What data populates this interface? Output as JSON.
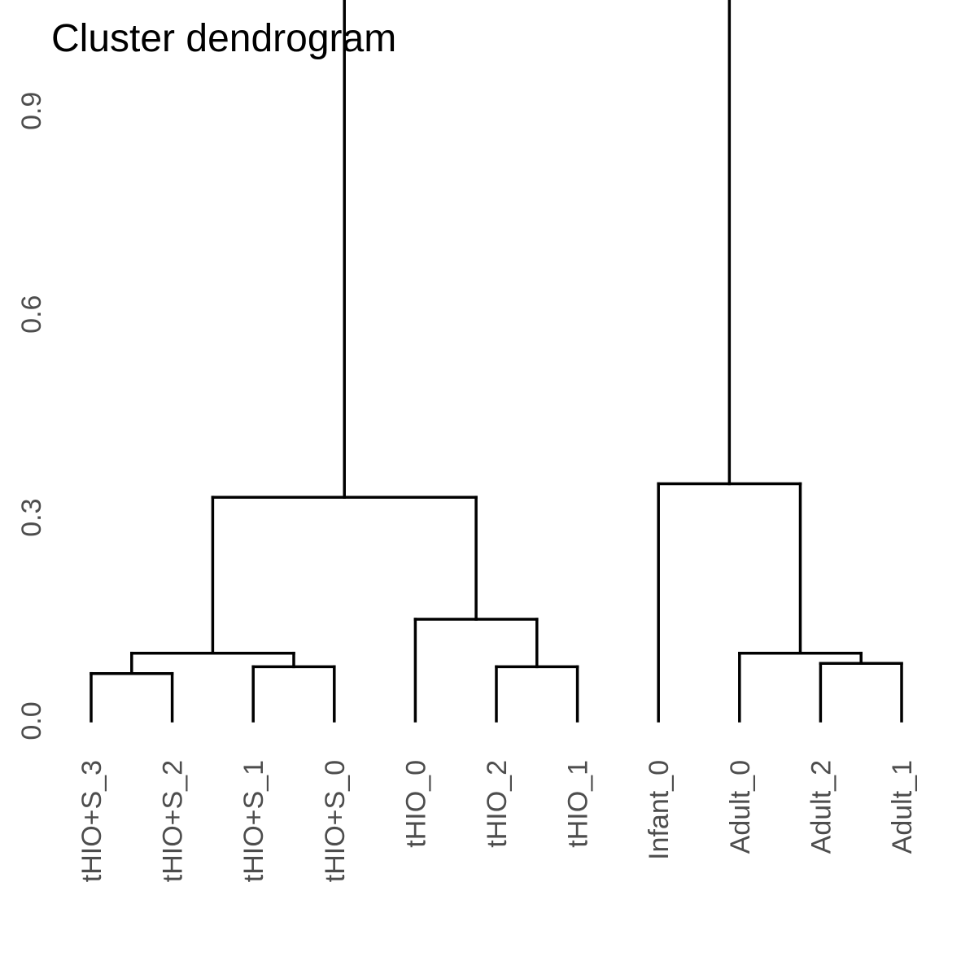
{
  "chart_data": {
    "type": "dendrogram",
    "title": "Cluster dendrogram",
    "xlabel": "",
    "ylabel": "",
    "ylim": [
      0,
      1.13
    ],
    "yticks": [
      "0.0",
      "0.3",
      "0.6",
      "0.9"
    ],
    "ytick_values": [
      0,
      0.3,
      0.6,
      0.9
    ],
    "grid": false,
    "leaves": [
      "tHIO+S_3",
      "tHIO+S_2",
      "tHIO+S_1",
      "tHIO+S_0",
      "tHIO_0",
      "tHIO_2",
      "tHIO_1",
      "Infant_0",
      "Adult_0",
      "Adult_2",
      "Adult_1"
    ],
    "merges": [
      {
        "id": "m1",
        "children": [
          "L0",
          "L1"
        ],
        "height": 0.07
      },
      {
        "id": "m2",
        "children": [
          "L2",
          "L3"
        ],
        "height": 0.08
      },
      {
        "id": "m3",
        "children": [
          "m1",
          "m2"
        ],
        "height": 0.1
      },
      {
        "id": "m4",
        "children": [
          "L5",
          "L6"
        ],
        "height": 0.08
      },
      {
        "id": "m5",
        "children": [
          "L4",
          "m4"
        ],
        "height": 0.15
      },
      {
        "id": "m6",
        "children": [
          "m3",
          "m5"
        ],
        "height": 0.33
      },
      {
        "id": "m7",
        "children": [
          "L9",
          "L10"
        ],
        "height": 0.085
      },
      {
        "id": "m8",
        "children": [
          "L8",
          "m7"
        ],
        "height": 0.1
      },
      {
        "id": "m9",
        "children": [
          "L7",
          "m8"
        ],
        "height": 0.35
      },
      {
        "id": "m10",
        "children": [
          "m6",
          "m9"
        ],
        "height": 1.12
      }
    ],
    "branch_color": "#000000",
    "label_color": "#4d4d4d"
  }
}
